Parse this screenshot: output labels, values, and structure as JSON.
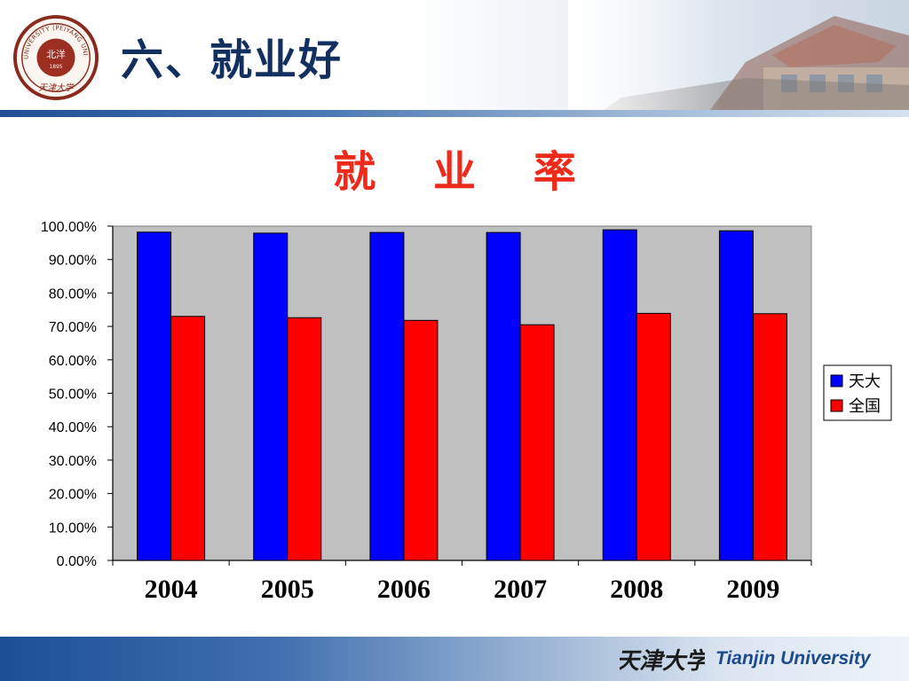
{
  "header": {
    "title": "六、就业好"
  },
  "branding": {
    "seal_text": "TIANJIN UNIVERSITY (PEIYANG UNIVERSITY)",
    "seal_center": "北洋",
    "seal_year": "1895",
    "seal_script": "天津大学",
    "footer_script": "天津大学",
    "footer_name": "Tianjin University"
  },
  "colors": {
    "title_red": "#ee2a1a",
    "header_navy": "#12305f",
    "series_tianda": "#0000ff",
    "series_national": "#ff0000",
    "plot_background": "#c0c0c0"
  },
  "chart_data": {
    "type": "bar",
    "title": "就  业  率",
    "categories": [
      "2004",
      "2005",
      "2006",
      "2007",
      "2008",
      "2009"
    ],
    "series": [
      {
        "name": "天大",
        "color": "#0000ff",
        "values": [
          98.2,
          97.9,
          98.1,
          98.1,
          98.9,
          98.6
        ]
      },
      {
        "name": "全国",
        "color": "#ff0000",
        "values": [
          73.0,
          72.6,
          71.8,
          70.5,
          73.9,
          73.8
        ]
      }
    ],
    "ylim": [
      0,
      100
    ],
    "yticks": [
      "0.00%",
      "10.00%",
      "20.00%",
      "30.00%",
      "40.00%",
      "50.00%",
      "60.00%",
      "70.00%",
      "80.00%",
      "90.00%",
      "100.00%"
    ],
    "xlabel": "",
    "ylabel": "",
    "grid": false,
    "legend_position": "right"
  }
}
